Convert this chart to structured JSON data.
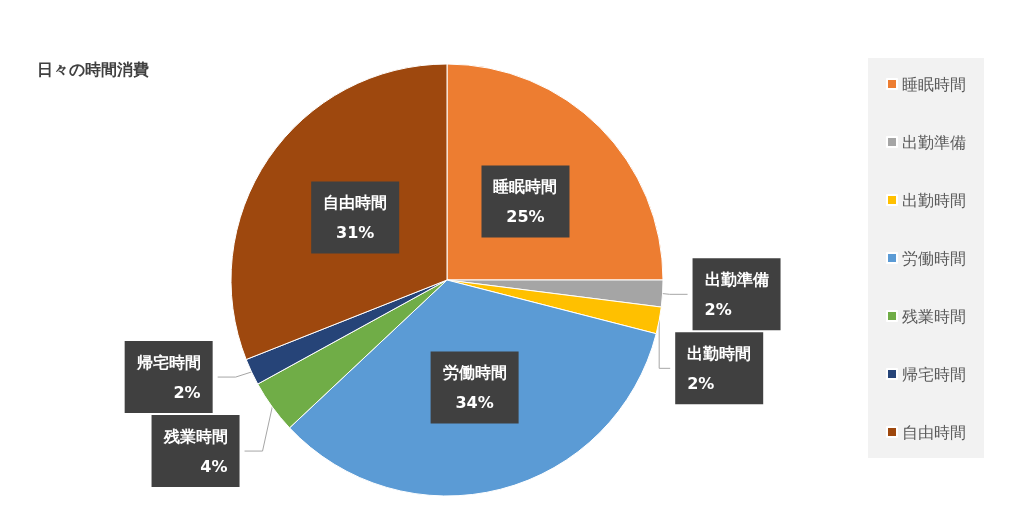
{
  "chart_data": {
    "type": "pie",
    "title": "日々の時間消費",
    "categories": [
      "睡眠時間",
      "出勤準備",
      "出勤時間",
      "労働時間",
      "残業時間",
      "帰宅時間",
      "自由時間"
    ],
    "values": [
      25,
      2,
      2,
      34,
      4,
      2,
      31
    ],
    "value_labels": [
      "25%",
      "2%",
      "2%",
      "34%",
      "4%",
      "2%",
      "31%"
    ],
    "colors": [
      "#ed7d31",
      "#a5a5a5",
      "#ffc000",
      "#5b9bd5",
      "#70ad47",
      "#264478",
      "#9e480e"
    ],
    "legend": "right"
  }
}
